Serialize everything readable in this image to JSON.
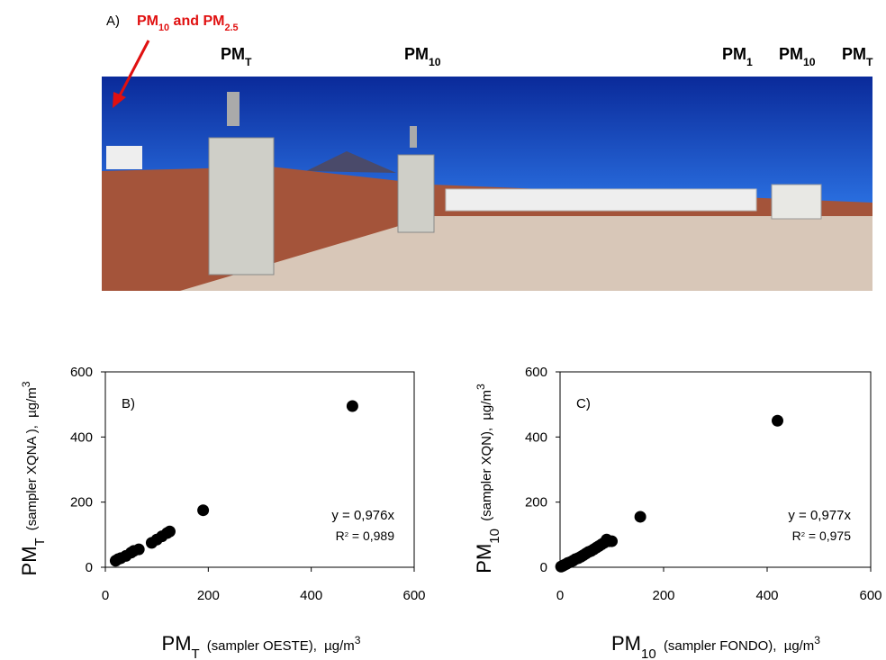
{
  "photo": {
    "panel": "A)",
    "callout": [
      {
        "text": "PM"
      },
      {
        "text": "10",
        "pos": "sub"
      },
      {
        "text": " and PM"
      },
      {
        "text": "2.5",
        "pos": "sub"
      }
    ],
    "labels": [
      [
        {
          "text": "PM"
        },
        {
          "text": "T",
          "pos": "sub"
        }
      ],
      [
        {
          "text": "PM"
        },
        {
          "text": "10",
          "pos": "sub"
        }
      ],
      [
        {
          "text": "PM"
        },
        {
          "text": "1",
          "pos": "sub"
        }
      ],
      [
        {
          "text": "PM"
        },
        {
          "text": "10",
          "pos": "sub"
        }
      ],
      [
        {
          "text": "PM"
        },
        {
          "text": "T",
          "pos": "sub"
        }
      ]
    ]
  },
  "chart_data": [
    {
      "type": "scatter",
      "panel": "B)",
      "x_label": [
        {
          "text": "PM"
        },
        {
          "text": "T",
          "pos": "sub"
        },
        {
          "text": "  (sampler OESTE),  µg/m",
          "pos": "small"
        },
        {
          "text": "3",
          "pos": "sup"
        }
      ],
      "y_label": [
        {
          "text": "PM"
        },
        {
          "text": "T",
          "pos": "sub"
        },
        {
          "text": "  (sampler XQNA ),  µg/m",
          "pos": "small"
        },
        {
          "text": "3",
          "pos": "sup"
        }
      ],
      "equation": "y = 0,976x",
      "r2": [
        {
          "text": "R"
        },
        {
          "text": "2",
          "pos": "sup"
        },
        {
          "text": " = 0,989"
        }
      ],
      "xlim": [
        0,
        600
      ],
      "ylim": [
        0,
        600
      ],
      "xticks": [
        0,
        200,
        400,
        600
      ],
      "yticks": [
        0,
        200,
        400,
        600
      ],
      "series": [
        {
          "color": "#000000",
          "x": [
            20,
            25,
            30,
            40,
            50,
            55,
            65,
            90,
            100,
            110,
            120,
            125,
            190,
            480
          ],
          "values": [
            20,
            25,
            28,
            35,
            45,
            50,
            55,
            75,
            85,
            95,
            105,
            110,
            175,
            495
          ]
        }
      ]
    },
    {
      "type": "scatter",
      "panel": "C)",
      "x_label": [
        {
          "text": "PM"
        },
        {
          "text": "10",
          "pos": "sub"
        },
        {
          "text": "  (sampler FONDO),  µg/m",
          "pos": "small"
        },
        {
          "text": "3",
          "pos": "sup"
        }
      ],
      "y_label": [
        {
          "text": "PM"
        },
        {
          "text": "10",
          "pos": "sub"
        },
        {
          "text": "  (sampler XQN),  µg/m",
          "pos": "small"
        },
        {
          "text": "3",
          "pos": "sup"
        }
      ],
      "equation": "y = 0,977x",
      "r2": [
        {
          "text": "R"
        },
        {
          "text": "2",
          "pos": "sup"
        },
        {
          "text": " = 0,975"
        }
      ],
      "xlim": [
        0,
        600
      ],
      "ylim": [
        0,
        600
      ],
      "xticks": [
        0,
        200,
        400,
        600
      ],
      "yticks": [
        0,
        200,
        400,
        600
      ],
      "series": [
        {
          "color": "#000000",
          "x": [
            2,
            5,
            8,
            12,
            15,
            20,
            25,
            30,
            35,
            40,
            45,
            50,
            55,
            60,
            65,
            70,
            75,
            80,
            85,
            90,
            95,
            100,
            155,
            420
          ],
          "values": [
            2,
            4,
            7,
            10,
            13,
            16,
            20,
            25,
            28,
            32,
            37,
            42,
            47,
            50,
            55,
            60,
            65,
            70,
            75,
            85,
            80,
            80,
            155,
            450
          ]
        }
      ]
    }
  ]
}
